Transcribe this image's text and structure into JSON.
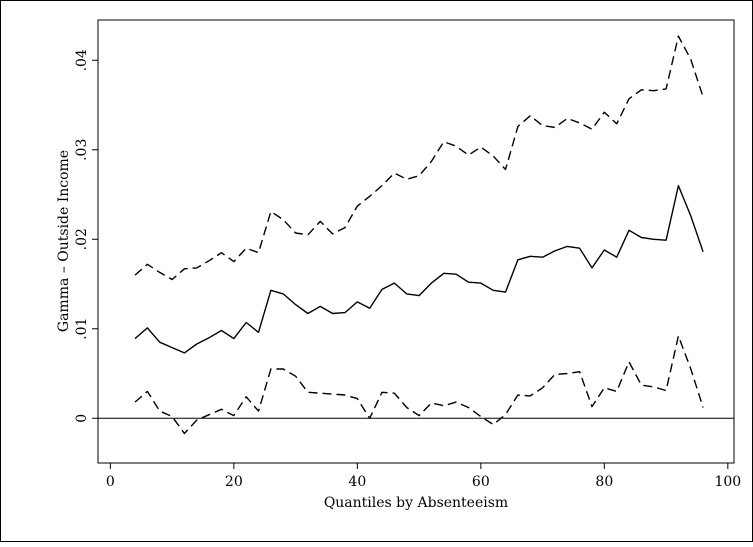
{
  "chart_data": {
    "type": "line",
    "title": "",
    "xlabel": "Quantiles by Absenteeism",
    "ylabel": "Gamma – Outside Income",
    "xlim": [
      -2,
      101
    ],
    "ylim": [
      -0.005,
      0.0445
    ],
    "x_ticks": [
      0,
      20,
      40,
      60,
      80,
      100
    ],
    "x_tick_labels": [
      "0",
      "20",
      "40",
      "60",
      "80",
      "100"
    ],
    "y_ticks": [
      0,
      0.01,
      0.02,
      0.03,
      0.04
    ],
    "y_tick_labels": [
      "0",
      ".01",
      ".02",
      ".03",
      ".04"
    ],
    "reference_line": 0,
    "grid": false,
    "legend": "none",
    "x": [
      4,
      6,
      8,
      10,
      12,
      14,
      16,
      18,
      20,
      22,
      24,
      26,
      28,
      30,
      32,
      34,
      36,
      38,
      40,
      42,
      44,
      46,
      48,
      50,
      52,
      54,
      56,
      58,
      60,
      62,
      64,
      66,
      68,
      70,
      72,
      74,
      76,
      78,
      80,
      82,
      84,
      86,
      88,
      90,
      92,
      94,
      96
    ],
    "series": [
      {
        "style": "dashed",
        "values": [
          0.016,
          0.0172,
          0.0163,
          0.0155,
          0.0167,
          0.0168,
          0.0176,
          0.0185,
          0.0175,
          0.019,
          0.0185,
          0.0231,
          0.0222,
          0.0207,
          0.0205,
          0.022,
          0.0206,
          0.0213,
          0.0237,
          0.0248,
          0.026,
          0.0274,
          0.0267,
          0.0271,
          0.0287,
          0.0309,
          0.0304,
          0.0294,
          0.0303,
          0.0293,
          0.0278,
          0.0326,
          0.0338,
          0.0327,
          0.0325,
          0.0335,
          0.033,
          0.0323,
          0.0342,
          0.0329,
          0.0357,
          0.0367,
          0.0366,
          0.0368,
          0.0427,
          0.0401,
          0.0359
        ]
      },
      {
        "style": "solid",
        "values": [
          0.0089,
          0.0101,
          0.0085,
          0.0079,
          0.0073,
          0.0083,
          0.009,
          0.0098,
          0.0089,
          0.0107,
          0.0096,
          0.0143,
          0.0139,
          0.0127,
          0.0117,
          0.0125,
          0.0117,
          0.0118,
          0.013,
          0.0123,
          0.0144,
          0.0151,
          0.0139,
          0.0137,
          0.0151,
          0.0162,
          0.0161,
          0.0152,
          0.0151,
          0.0143,
          0.0141,
          0.0177,
          0.0181,
          0.018,
          0.0187,
          0.0192,
          0.019,
          0.0168,
          0.0188,
          0.018,
          0.021,
          0.0202,
          0.02,
          0.0199,
          0.026,
          0.0226,
          0.0186
        ]
      },
      {
        "style": "dashed",
        "values": [
          0.0018,
          0.003,
          0.0008,
          0.0002,
          -0.0017,
          -0.0002,
          0.0004,
          0.001,
          0.0003,
          0.0024,
          0.0008,
          0.0055,
          0.0055,
          0.0047,
          0.0029,
          0.0028,
          0.0027,
          0.0026,
          0.0022,
          0.0,
          0.0029,
          0.0028,
          0.0012,
          0.0003,
          0.0017,
          0.0014,
          0.0018,
          0.0012,
          0.0002,
          -0.0007,
          0.0004,
          0.0026,
          0.0025,
          0.0034,
          0.0049,
          0.005,
          0.0052,
          0.0013,
          0.0034,
          0.003,
          0.0063,
          0.0037,
          0.0035,
          0.0031,
          0.0092,
          0.0055,
          0.0012
        ]
      }
    ]
  }
}
